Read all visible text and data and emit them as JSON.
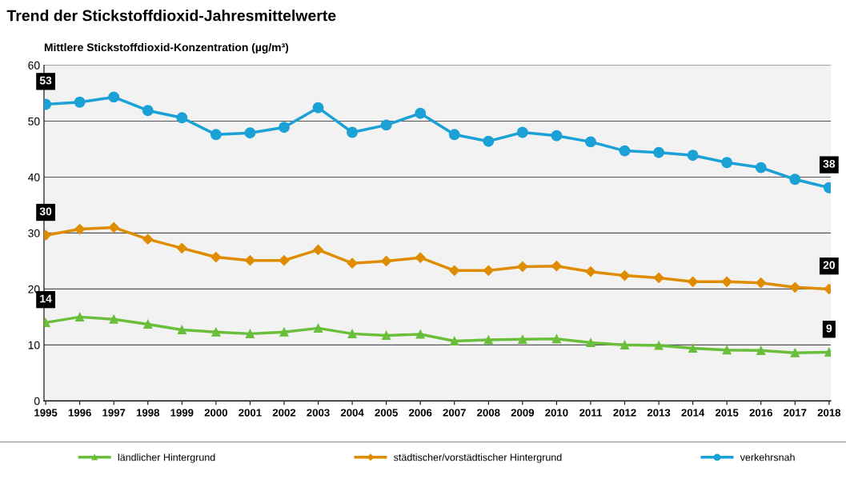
{
  "chart_data": {
    "type": "line",
    "title": "Trend der Stickstoffdioxid-Jahresmittelwerte",
    "ylabel": "Mittlere Stickstoffdioxid-Konzentration (µg/m³)",
    "categories": [
      "1995",
      "1996",
      "1997",
      "1998",
      "1999",
      "2000",
      "2001",
      "2002",
      "2003",
      "2004",
      "2005",
      "2006",
      "2007",
      "2008",
      "2009",
      "2010",
      "2011",
      "2012",
      "2013",
      "2014",
      "2015",
      "2016",
      "2017",
      "2018"
    ],
    "series": [
      {
        "name": "ländlicher Hintergrund",
        "color": "#6abf3a",
        "marker": "triangle",
        "values": [
          14,
          15,
          14.6,
          13.7,
          12.7,
          12.3,
          12,
          12.3,
          13,
          12,
          11.7,
          11.9,
          10.7,
          10.9,
          11,
          11.1,
          10.4,
          10,
          9.9,
          9.4,
          9.1,
          9,
          8.6,
          8.7
        ],
        "value_labels": [
          "14",
          null,
          null,
          null,
          null,
          null,
          null,
          null,
          null,
          null,
          null,
          null,
          null,
          null,
          null,
          null,
          null,
          null,
          null,
          null,
          null,
          null,
          null,
          "9"
        ]
      },
      {
        "name": "städtischer/vorstädtischer Hintergrund",
        "color": "#e08c00",
        "marker": "diamond",
        "values": [
          29.6,
          30.7,
          31,
          28.9,
          27.3,
          25.7,
          25.1,
          25.1,
          27,
          24.6,
          25,
          25.6,
          23.3,
          23.3,
          24,
          24.1,
          23.1,
          22.4,
          22,
          21.3,
          21.3,
          21.1,
          20.3,
          20
        ],
        "value_labels": [
          "30",
          null,
          null,
          null,
          null,
          null,
          null,
          null,
          null,
          null,
          null,
          null,
          null,
          null,
          null,
          null,
          null,
          null,
          null,
          null,
          null,
          null,
          null,
          "20"
        ]
      },
      {
        "name": "verkehrsnah",
        "color": "#1ba1d6",
        "marker": "circle",
        "values": [
          53,
          53.4,
          54.3,
          51.9,
          50.6,
          47.6,
          47.9,
          48.9,
          52.4,
          48,
          49.3,
          51.4,
          47.6,
          46.4,
          48,
          47.4,
          46.3,
          44.7,
          44.4,
          43.9,
          42.6,
          41.7,
          39.6,
          38.1
        ],
        "value_labels": [
          "53",
          null,
          null,
          null,
          null,
          null,
          null,
          null,
          null,
          null,
          null,
          null,
          null,
          null,
          null,
          null,
          null,
          null,
          null,
          null,
          null,
          null,
          null,
          "38"
        ]
      }
    ],
    "ylim": [
      0,
      60
    ],
    "yticks": [
      0,
      10,
      20,
      30,
      40,
      50,
      60
    ],
    "grid": "y",
    "legend": "bottom"
  }
}
